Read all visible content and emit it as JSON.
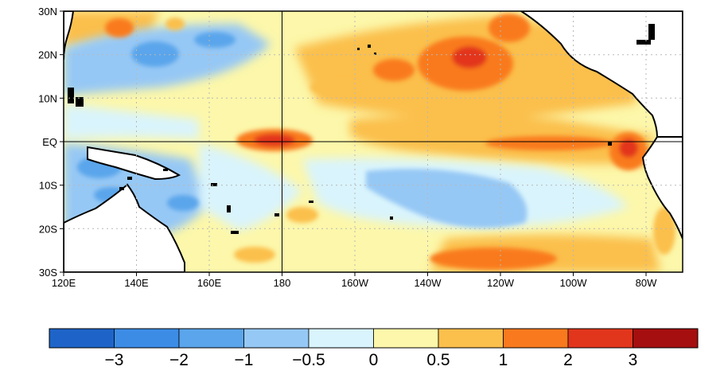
{
  "map": {
    "lat_labels": [
      "30N",
      "20N",
      "10N",
      "EQ",
      "10S",
      "20S",
      "30S"
    ],
    "lon_labels": [
      "120E",
      "140E",
      "160E",
      "180",
      "160W",
      "140W",
      "120W",
      "100W",
      "80W"
    ],
    "lat_range": [
      -30,
      30
    ],
    "lon_range_east": [
      120,
      290
    ],
    "grid": "dotted",
    "land_color": "#ffffff"
  },
  "colorbar": {
    "tick_labels": [
      "−3",
      "−2",
      "−1",
      "−0.5",
      "0",
      "0.5",
      "1",
      "2",
      "3"
    ],
    "bin_colors": [
      "#1e64c8",
      "#3c8ce6",
      "#5aa5eb",
      "#96c8f5",
      "#d9f4fc",
      "#fcf7aa",
      "#fbbf4c",
      "#f97a1e",
      "#e2361c",
      "#a50f0f"
    ]
  }
}
